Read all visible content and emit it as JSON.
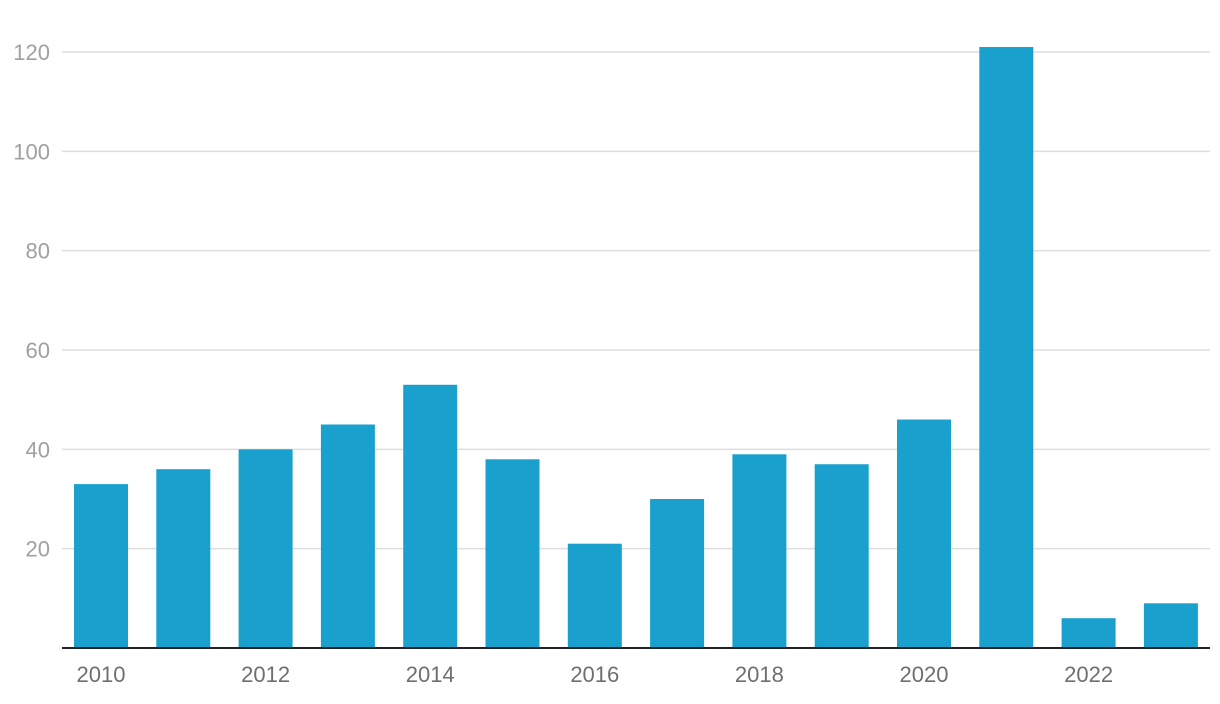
{
  "chart_data": {
    "type": "bar",
    "categories": [
      "2010",
      "2011",
      "2012",
      "2013",
      "2014",
      "2015",
      "2016",
      "2017",
      "2018",
      "2019",
      "2020",
      "2021",
      "2022",
      "2023"
    ],
    "values": [
      33,
      36,
      40,
      45,
      53,
      38,
      21,
      30,
      39,
      37,
      46,
      121,
      6,
      9
    ],
    "x_tick_labels": [
      "2010",
      "2012",
      "2014",
      "2016",
      "2018",
      "2020",
      "2022"
    ],
    "y_ticks": [
      20,
      40,
      60,
      80,
      100,
      120
    ],
    "ylim": [
      0,
      120
    ],
    "title": "",
    "xlabel": "",
    "ylabel": "",
    "grid": true,
    "legend": "none",
    "bar_color": "#1aa0cd",
    "grid_color": "#dedede",
    "baseline_color": "#222222",
    "y_tick_color": "#a0a0a0",
    "x_tick_color": "#6f6f6f"
  }
}
